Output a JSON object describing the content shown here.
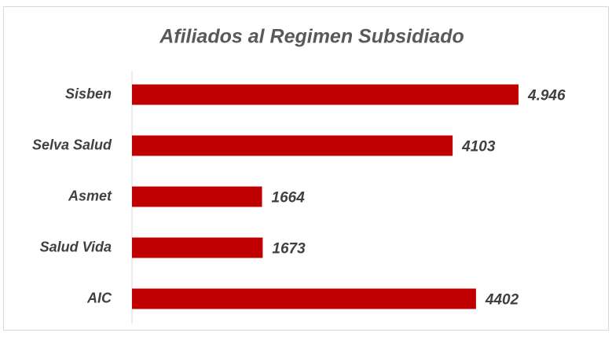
{
  "chart_data": {
    "type": "bar",
    "orientation": "horizontal",
    "title": "Afiliados al Regimen Subsidiado",
    "categories": [
      "Sisben",
      "Selva Salud",
      "Asmet",
      "Salud Vida",
      "AIC"
    ],
    "values": [
      4946,
      4103,
      1664,
      1673,
      4402
    ],
    "value_labels": [
      "4.946",
      "4103",
      "1664",
      "1673",
      "4402"
    ],
    "color": "#c00000"
  }
}
